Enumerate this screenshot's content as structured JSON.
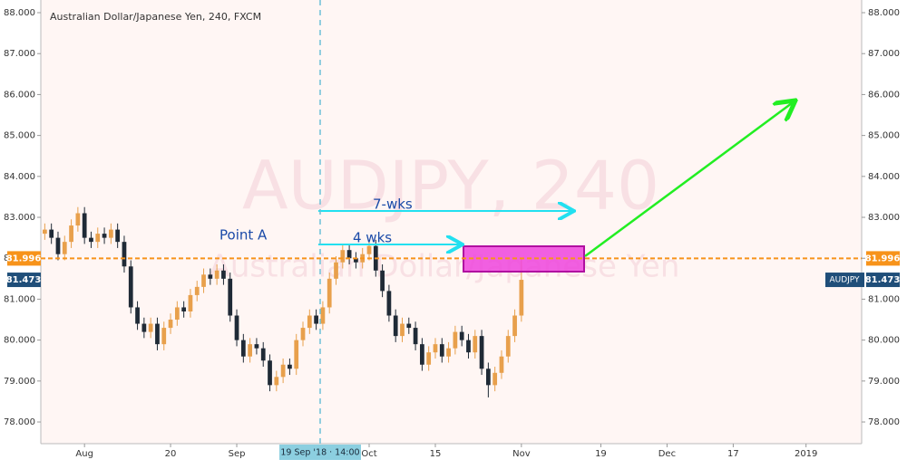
{
  "chart_data": {
    "type": "candlestick",
    "title": "Australian Dollar/Japanese Yen, 240, FXCM",
    "watermark": "AUDJPY, 240",
    "watermark_subtitle": "Australian Dollar/Japanese Yen",
    "symbol": "AUDJPY",
    "annotations": [
      "Point A",
      "7-wks",
      "4 wks"
    ],
    "crosshair": {
      "x": 35.6,
      "label": "19 Sep '18 · 14:00"
    },
    "price_line": 81.996,
    "last_price": 81.473,
    "up_color": "#e8a04c",
    "down_color": "#1f2a36",
    "price_line_color": "#f7931a",
    "last_price_color": "#1f4e79",
    "grid": false,
    "xlim": [
      -6.6,
      117.4
    ],
    "xticks": [
      {
        "value": 0,
        "label": "Aug"
      },
      {
        "value": 13,
        "label": "20"
      },
      {
        "value": 23,
        "label": "Sep"
      },
      {
        "value": 43,
        "label": "Oct"
      },
      {
        "value": 53,
        "label": "15"
      },
      {
        "value": 66,
        "label": "Nov"
      },
      {
        "value": 78,
        "label": "19"
      },
      {
        "value": 88,
        "label": "Dec"
      },
      {
        "value": 98,
        "label": "17"
      },
      {
        "value": 109,
        "label": "2019"
      }
    ],
    "ylim": [
      77.47,
      88.31
    ],
    "yticks": [
      {
        "value": 78,
        "label": "78.000"
      },
      {
        "value": 79,
        "label": "79.000"
      },
      {
        "value": 80,
        "label": "80.000"
      },
      {
        "value": 81,
        "label": "81.000"
      },
      {
        "value": 82,
        "label": "82.000"
      },
      {
        "value": 83,
        "label": "83.000"
      },
      {
        "value": 84,
        "label": "84.000"
      },
      {
        "value": 85,
        "label": "85.000"
      },
      {
        "value": 86,
        "label": "86.000"
      },
      {
        "value": 87,
        "label": "87.000"
      },
      {
        "value": 88,
        "label": "88.000"
      }
    ],
    "x": [
      -6,
      -5,
      -4,
      -3,
      -2,
      -1,
      0,
      1,
      2,
      3,
      4,
      5,
      6,
      7,
      8,
      9,
      10,
      11,
      12,
      13,
      14,
      15,
      16,
      17,
      18,
      19,
      20,
      21,
      22,
      23,
      24,
      25,
      26,
      27,
      28,
      29,
      30,
      31,
      32,
      33,
      34,
      35,
      36,
      37,
      38,
      39,
      40,
      41,
      42,
      43,
      44,
      45,
      46,
      47,
      48,
      49,
      50,
      51,
      52,
      53,
      54,
      55,
      56,
      57,
      58,
      59,
      60,
      61,
      62,
      63,
      64,
      65,
      66
    ],
    "open": [
      82.6,
      82.7,
      82.5,
      82.1,
      82.4,
      82.8,
      83.1,
      82.5,
      82.4,
      82.6,
      82.5,
      82.7,
      82.4,
      81.8,
      80.8,
      80.4,
      80.2,
      80.4,
      79.9,
      80.3,
      80.5,
      80.8,
      80.7,
      81.1,
      81.3,
      81.6,
      81.5,
      81.7,
      81.5,
      80.6,
      80.0,
      79.6,
      79.9,
      79.8,
      79.5,
      78.9,
      79.1,
      79.4,
      79.3,
      80.0,
      80.3,
      80.6,
      80.4,
      80.8,
      81.5,
      81.9,
      82.2,
      82.0,
      81.9,
      82.1,
      82.3,
      81.7,
      81.2,
      80.6,
      80.1,
      80.4,
      80.3,
      79.9,
      79.4,
      79.7,
      79.9,
      79.6,
      79.8,
      80.2,
      80.0,
      79.7,
      80.1,
      79.3,
      78.9,
      79.2,
      79.6,
      80.1,
      80.6
    ],
    "high": [
      82.85,
      82.85,
      82.65,
      82.55,
      82.95,
      83.25,
      83.25,
      82.65,
      82.75,
      82.75,
      82.85,
      82.85,
      82.55,
      81.95,
      80.95,
      80.55,
      80.55,
      80.55,
      80.45,
      80.65,
      80.95,
      80.95,
      81.25,
      81.45,
      81.75,
      81.75,
      81.85,
      81.85,
      81.65,
      80.75,
      80.15,
      80.05,
      80.05,
      79.95,
      79.65,
      79.25,
      79.55,
      79.55,
      80.15,
      80.45,
      80.75,
      80.75,
      80.95,
      81.65,
      82.05,
      82.35,
      82.35,
      82.15,
      82.25,
      82.45,
      82.45,
      81.85,
      81.35,
      80.75,
      80.55,
      80.55,
      80.45,
      80.05,
      79.85,
      80.05,
      80.05,
      79.95,
      80.35,
      80.35,
      80.15,
      80.25,
      80.25,
      79.45,
      79.35,
      79.75,
      80.25,
      80.75,
      82.0
    ],
    "low": [
      82.45,
      82.35,
      81.95,
      81.95,
      82.25,
      82.65,
      82.35,
      82.25,
      82.25,
      82.35,
      82.35,
      82.25,
      81.65,
      80.65,
      80.25,
      80.05,
      80.05,
      79.75,
      79.75,
      80.15,
      80.35,
      80.55,
      80.55,
      80.95,
      81.15,
      81.35,
      81.35,
      81.35,
      80.45,
      79.85,
      79.45,
      79.45,
      79.65,
      79.35,
      78.75,
      78.75,
      78.95,
      79.15,
      79.15,
      79.85,
      80.15,
      80.25,
      80.25,
      80.65,
      81.35,
      81.75,
      81.85,
      81.75,
      81.75,
      81.95,
      81.55,
      81.05,
      80.45,
      79.95,
      79.95,
      80.15,
      79.75,
      79.25,
      79.25,
      79.55,
      79.45,
      79.45,
      79.65,
      79.85,
      79.55,
      79.55,
      79.15,
      78.6,
      78.75,
      79.05,
      79.45,
      79.95,
      80.45
    ],
    "close": [
      82.7,
      82.5,
      82.1,
      82.4,
      82.8,
      83.1,
      82.5,
      82.4,
      82.6,
      82.5,
      82.7,
      82.4,
      81.8,
      80.8,
      80.4,
      80.2,
      80.4,
      79.9,
      80.3,
      80.5,
      80.8,
      80.7,
      81.1,
      81.3,
      81.6,
      81.5,
      81.7,
      81.5,
      80.6,
      80.0,
      79.6,
      79.9,
      79.8,
      79.5,
      78.9,
      79.1,
      79.4,
      79.3,
      80.0,
      80.3,
      80.6,
      80.4,
      80.8,
      81.5,
      81.9,
      82.2,
      82.0,
      81.9,
      82.1,
      82.3,
      81.7,
      81.2,
      80.6,
      80.1,
      80.4,
      80.3,
      79.9,
      79.4,
      79.7,
      79.9,
      79.6,
      79.8,
      80.2,
      80.0,
      79.7,
      80.1,
      79.3,
      78.9,
      79.2,
      79.6,
      80.1,
      80.6,
      81.473
    ]
  }
}
